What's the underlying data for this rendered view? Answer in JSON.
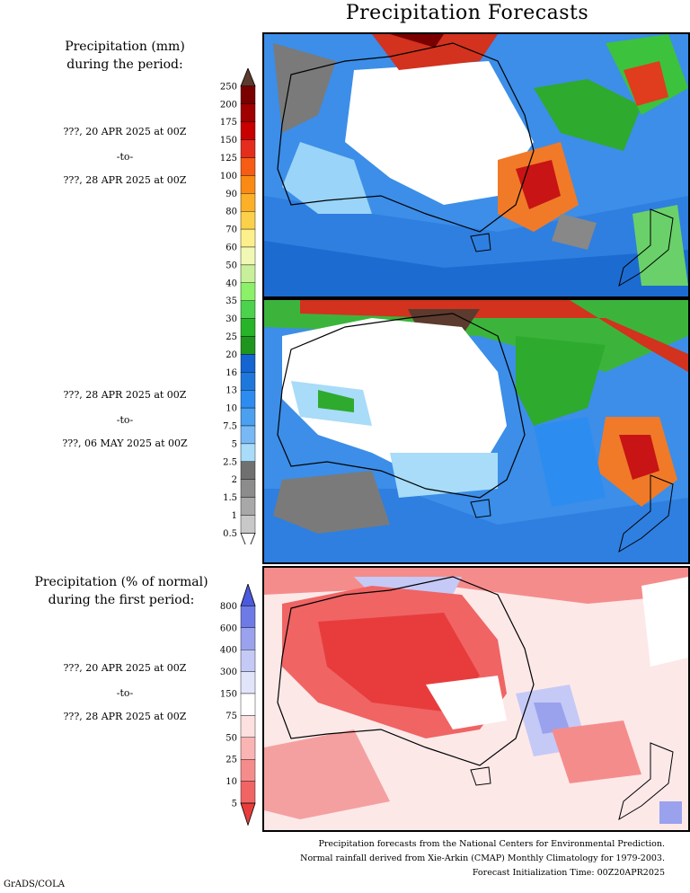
{
  "title": "Precipitation Forecasts",
  "section1": {
    "heading_line1": "Precipitation (mm)",
    "heading_line2": "during the period:",
    "period1": {
      "start": "???, 20 APR 2025 at 00Z",
      "sep": "-to-",
      "end": "???, 28 APR 2025 at 00Z"
    },
    "period2": {
      "start": "???, 28 APR 2025 at 00Z",
      "sep": "-to-",
      "end": "???, 06 MAY 2025 at 00Z"
    }
  },
  "precip_scale": {
    "labels": [
      "250",
      "200",
      "175",
      "150",
      "125",
      "100",
      "90",
      "80",
      "70",
      "60",
      "50",
      "40",
      "35",
      "30",
      "25",
      "20",
      "16",
      "13",
      "10",
      "7.5",
      "5",
      "2.5",
      "2",
      "1.5",
      "1",
      "0.5"
    ],
    "colors": [
      "#5c3a2e",
      "#7a0000",
      "#a00000",
      "#c80000",
      "#e52d1e",
      "#f75c14",
      "#fa8a14",
      "#fbb028",
      "#fbd04a",
      "#fdf08c",
      "#f0f8b4",
      "#c8f09a",
      "#8cf068",
      "#4cd24c",
      "#28b428",
      "#1e961e",
      "#1464d2",
      "#1e78dc",
      "#2d8cf0",
      "#4ba0f0",
      "#78b9f5",
      "#a8dcf8",
      "#707070",
      "#8c8c8c",
      "#a8a8a8",
      "#c8c8c8",
      "#ffffff"
    ]
  },
  "section2": {
    "heading_line1": "Precipitation (% of normal)",
    "heading_line2": "during the first period:",
    "period": {
      "start": "???, 20 APR 2025 at 00Z",
      "sep": "-to-",
      "end": "???, 28 APR 2025 at 00Z"
    }
  },
  "pct_scale": {
    "labels": [
      "800",
      "600",
      "400",
      "300",
      "150",
      "75",
      "50",
      "25",
      "10",
      "5"
    ],
    "colors": [
      "#4b5adc",
      "#6e7be6",
      "#9aa2ee",
      "#c5c9f6",
      "#e2e4fa",
      "#ffffff",
      "#fde0e0",
      "#fab4b4",
      "#f58c8c",
      "#f06464",
      "#e83c3c"
    ]
  },
  "footer": {
    "line1": "Precipitation forecasts from the National Centers for Environmental Prediction.",
    "line2": "Normal rainfall derived from Xie-Arkin (CMAP) Monthly Climatology for 1979-2003.",
    "line3": "Forecast Initialization Time: 00Z20APR2025"
  },
  "credit": "GrADS/COLA"
}
